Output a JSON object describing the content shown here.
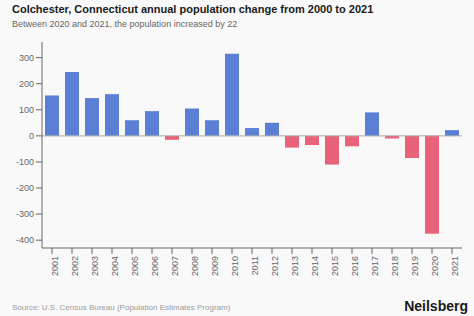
{
  "chart_data": {
    "type": "bar",
    "title": "Colchester, Connecticut annual population change from 2000 to 2021",
    "subtitle": "Between 2020 and 2021, the population increased by 22",
    "annotations": [
      "Source: U.S. Census Bureau (Population Estimates Program)",
      "Neilsberg"
    ],
    "categories": [
      "2001",
      "2002",
      "2003",
      "2004",
      "2005",
      "2006",
      "2007",
      "2008",
      "2009",
      "2010",
      "2011",
      "2012",
      "2013",
      "2014",
      "2015",
      "2016",
      "2017",
      "2018",
      "2019",
      "2020",
      "2021"
    ],
    "values": [
      155,
      245,
      145,
      160,
      60,
      95,
      -15,
      105,
      60,
      315,
      30,
      50,
      -45,
      -35,
      -110,
      -40,
      90,
      -10,
      -85,
      -375,
      22
    ],
    "colors": [
      "#5b7fd4",
      "#5b7fd4",
      "#5b7fd4",
      "#5b7fd4",
      "#5b7fd4",
      "#5b7fd4",
      "#e8637a",
      "#5b7fd4",
      "#5b7fd4",
      "#5b7fd4",
      "#5b7fd4",
      "#5b7fd4",
      "#e8637a",
      "#e8637a",
      "#e8637a",
      "#e8637a",
      "#5b7fd4",
      "#e8637a",
      "#e8637a",
      "#e8637a",
      "#5b7fd4"
    ],
    "ylim": [
      -430,
      360
    ],
    "yticks": [
      -400,
      -300,
      -200,
      -100,
      0,
      100,
      200,
      300
    ],
    "grid": false
  }
}
